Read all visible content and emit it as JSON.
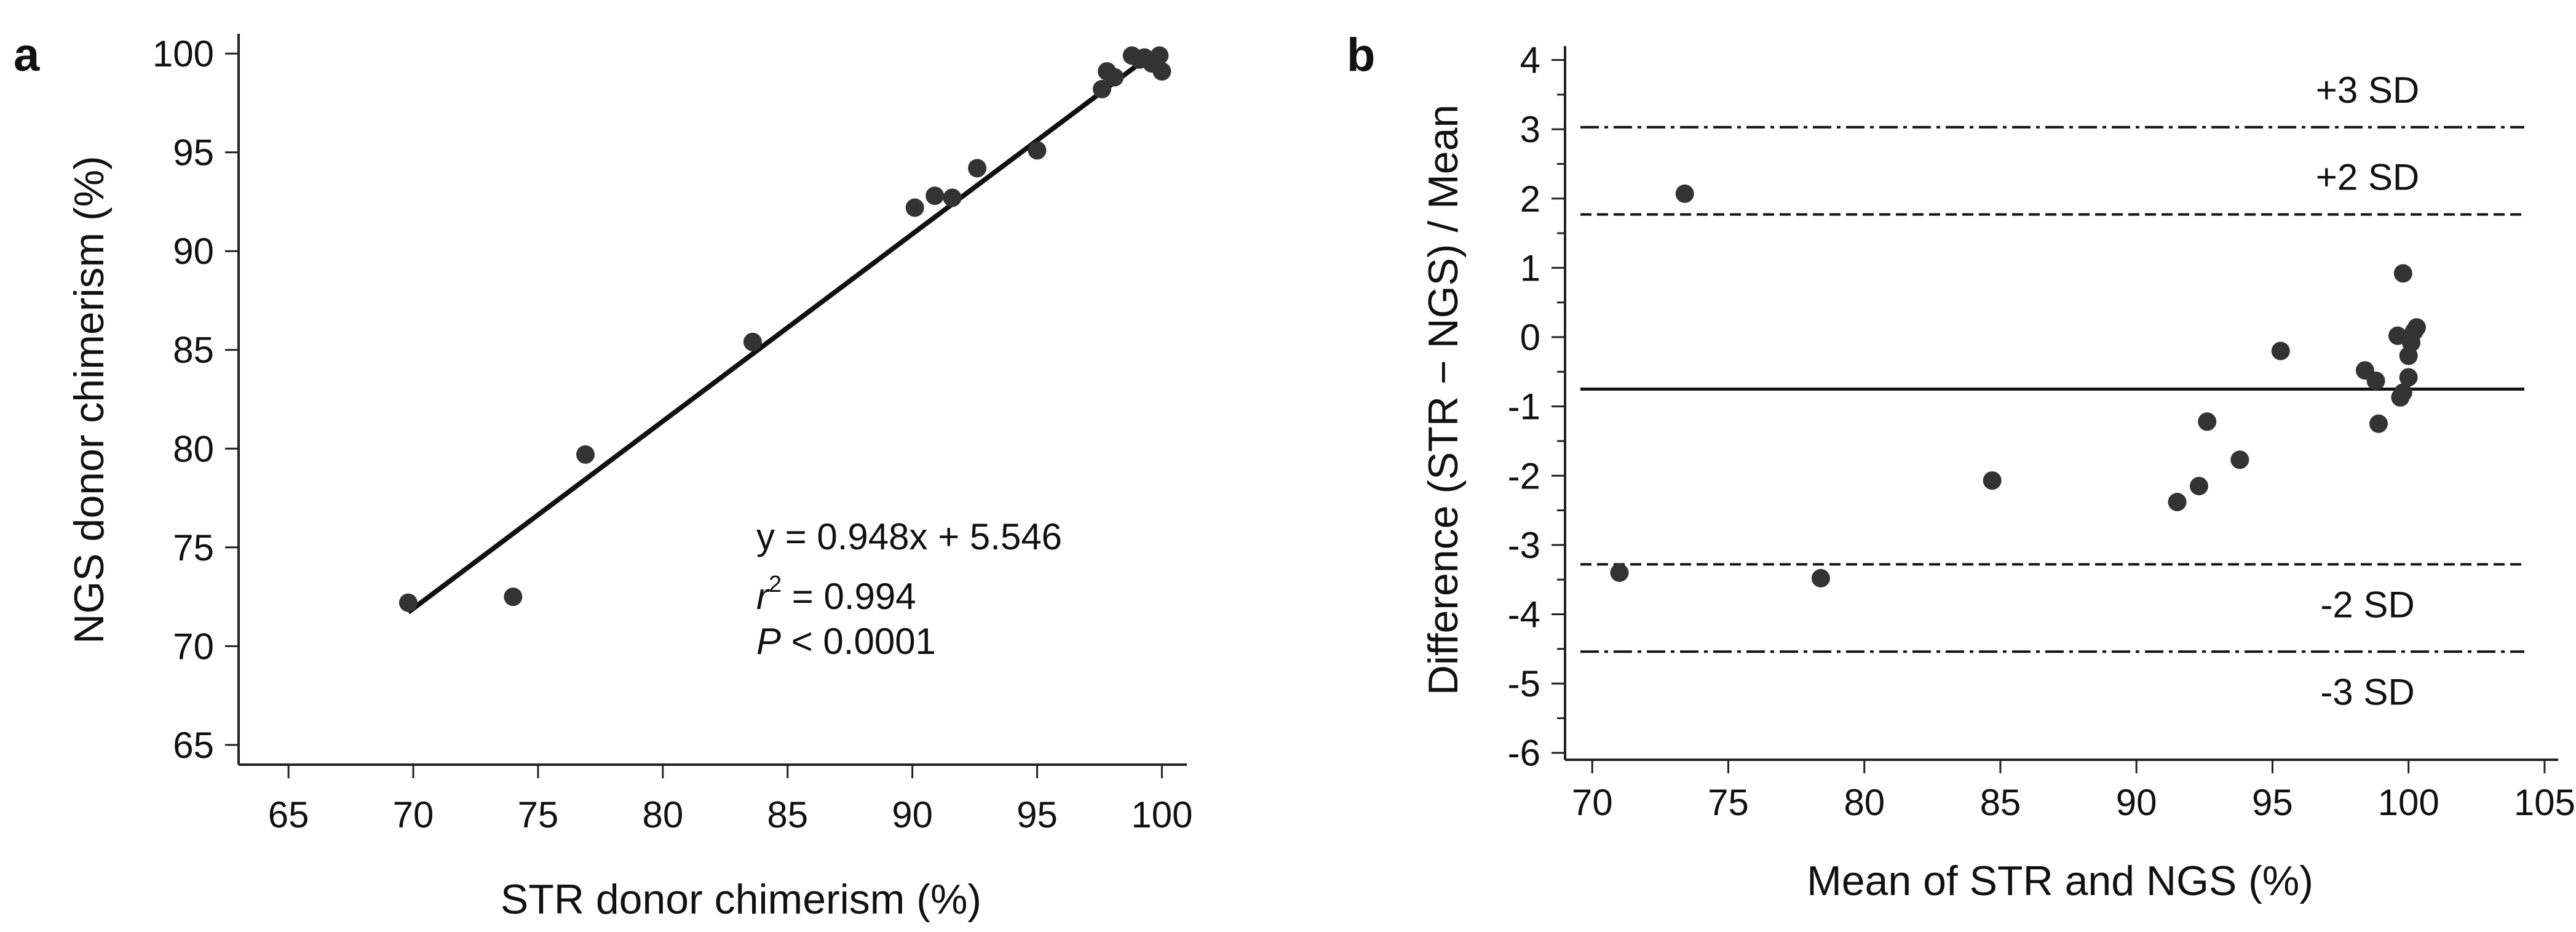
{
  "chart_data": [
    {
      "panel": "a",
      "type": "scatter",
      "xlabel": "STR donor chimerism (%)",
      "ylabel": "NGS donor chimerism (%)",
      "xlim": [
        63,
        101
      ],
      "ylim": [
        64,
        101
      ],
      "xticks": [
        65,
        70,
        75,
        80,
        85,
        90,
        95,
        100
      ],
      "yticks": [
        65,
        70,
        75,
        80,
        85,
        90,
        95,
        100
      ],
      "points": [
        {
          "x": 69.8,
          "y": 72.2
        },
        {
          "x": 74.0,
          "y": 72.5
        },
        {
          "x": 76.9,
          "y": 79.7
        },
        {
          "x": 83.6,
          "y": 85.4
        },
        {
          "x": 90.1,
          "y": 92.2
        },
        {
          "x": 90.9,
          "y": 92.8
        },
        {
          "x": 91.6,
          "y": 92.7
        },
        {
          "x": 92.6,
          "y": 94.2
        },
        {
          "x": 95.0,
          "y": 95.1
        },
        {
          "x": 97.6,
          "y": 98.2
        },
        {
          "x": 97.8,
          "y": 99.1
        },
        {
          "x": 98.1,
          "y": 98.8
        },
        {
          "x": 98.8,
          "y": 99.9
        },
        {
          "x": 99.1,
          "y": 99.7
        },
        {
          "x": 99.3,
          "y": 99.8
        },
        {
          "x": 99.6,
          "y": 99.5
        },
        {
          "x": 99.9,
          "y": 99.9
        },
        {
          "x": 100.0,
          "y": 99.1
        }
      ],
      "fit_line": {
        "slope": 0.948,
        "intercept": 5.546,
        "x_range": [
          69.8,
          99.8
        ]
      },
      "annotations": {
        "equation": "y = 0.948x + 5.546",
        "r_label": "r",
        "r_sup": "2",
        "r_value": " = 0.994",
        "p_label": "P",
        "p_value": " < 0.0001"
      }
    },
    {
      "panel": "b",
      "type": "scatter",
      "xlabel": "Mean of STR and NGS (%)",
      "ylabel": "Difference (STR − NGS) / Mean",
      "xlim": [
        69,
        105.5
      ],
      "ylim": [
        -6.1,
        4.2
      ],
      "xticks": [
        70,
        75,
        80,
        85,
        90,
        95,
        100,
        105
      ],
      "yticks": [
        -6,
        -5,
        -4,
        -3,
        -2,
        -1,
        0,
        1,
        2,
        3,
        4
      ],
      "points": [
        {
          "x": 71.0,
          "y": -3.4
        },
        {
          "x": 73.4,
          "y": 2.07
        },
        {
          "x": 78.4,
          "y": -3.48
        },
        {
          "x": 84.7,
          "y": -2.07
        },
        {
          "x": 91.5,
          "y": -2.38
        },
        {
          "x": 92.3,
          "y": -2.15
        },
        {
          "x": 92.6,
          "y": -1.22
        },
        {
          "x": 93.8,
          "y": -1.77
        },
        {
          "x": 95.3,
          "y": -0.2
        },
        {
          "x": 98.4,
          "y": -0.48
        },
        {
          "x": 98.8,
          "y": -0.63
        },
        {
          "x": 98.9,
          "y": -1.25
        },
        {
          "x": 99.6,
          "y": 0.02
        },
        {
          "x": 99.7,
          "y": -0.87
        },
        {
          "x": 99.8,
          "y": 0.92
        },
        {
          "x": 99.8,
          "y": -0.8
        },
        {
          "x": 100.0,
          "y": -0.27
        },
        {
          "x": 100.0,
          "y": -0.58
        },
        {
          "x": 100.1,
          "y": -0.08
        },
        {
          "x": 100.2,
          "y": 0.08
        },
        {
          "x": 100.3,
          "y": 0.14
        }
      ],
      "reference_lines": [
        {
          "name": "mean",
          "y": -0.75,
          "style": "solid",
          "label": ""
        },
        {
          "name": "plus-2sd",
          "y": 1.77,
          "style": "dashed",
          "label": "+2 SD"
        },
        {
          "name": "minus-2sd",
          "y": -3.28,
          "style": "dashed",
          "label": "-2 SD"
        },
        {
          "name": "plus-3sd",
          "y": 3.03,
          "style": "dashdot",
          "label": "+3 SD"
        },
        {
          "name": "minus-3sd",
          "y": -4.54,
          "style": "dashdot",
          "label": "-3 SD"
        }
      ]
    }
  ],
  "panel_labels": {
    "a": "a",
    "b": "b"
  }
}
